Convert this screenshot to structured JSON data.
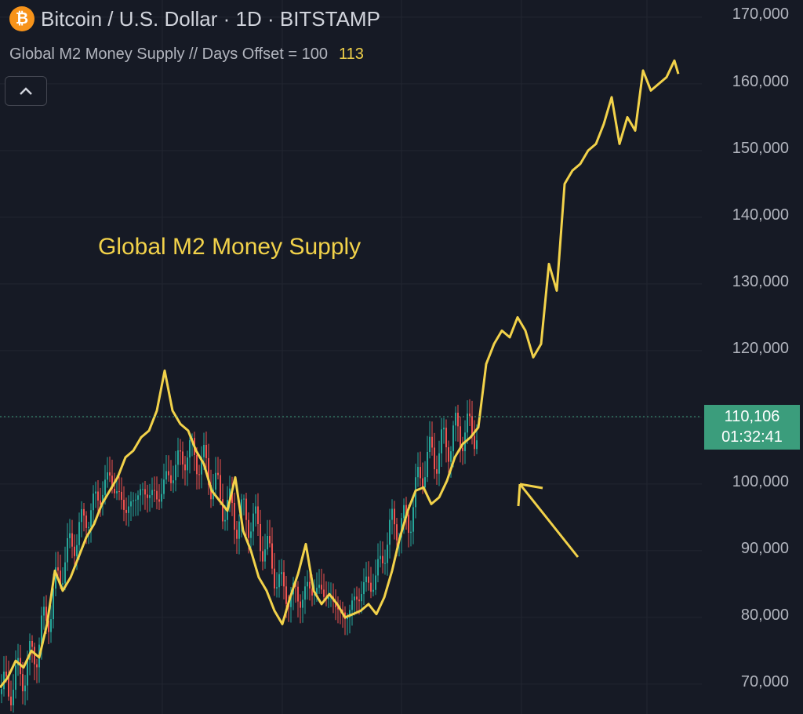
{
  "header": {
    "symbol_icon": "bitcoin-icon",
    "title": "Bitcoin / U.S. Dollar · 1D · BITSTAMP",
    "indicator_label": "Global M2 Money Supply // Days Offset = 100",
    "indicator_value": "113"
  },
  "annotation": "Global M2 Money Supply",
  "price_axis": [
    "170,000",
    "160,000",
    "150,000",
    "140,000",
    "130,000",
    "120,000",
    "100,000",
    "90,000",
    "80,000",
    "70,000"
  ],
  "current_price": {
    "value": "110,106",
    "countdown": "01:32:41"
  },
  "colors": {
    "background": "#161a25",
    "m2_line": "#f2d24a",
    "up": "#26a69a",
    "down": "#ef5350",
    "price_tag": "#3b9d7c"
  },
  "chart_data": {
    "type": "line",
    "title": "Bitcoin / U.S. Dollar · 1D · BITSTAMP",
    "ylim": [
      66000,
      173000
    ],
    "y_ticks": [
      70000,
      80000,
      90000,
      100000,
      110000,
      120000,
      130000,
      140000,
      150000,
      160000,
      170000
    ],
    "current_price": 110106,
    "series": [
      {
        "name": "Global M2 Money Supply",
        "x_index": [
          0,
          10,
          20,
          30,
          40,
          50,
          60,
          70,
          80,
          90,
          100,
          110,
          120,
          130,
          140,
          150,
          160,
          170,
          180,
          190,
          200,
          210,
          220,
          230,
          240,
          250,
          260,
          270,
          280,
          290,
          300,
          310,
          320,
          330,
          340,
          350,
          360,
          370,
          380,
          390,
          400,
          410,
          420,
          430,
          440,
          450,
          460,
          470,
          480,
          490,
          500,
          510,
          520,
          530,
          540,
          550,
          560,
          570,
          580,
          590,
          600,
          610,
          620,
          630,
          640,
          650,
          660,
          670,
          680,
          690,
          700,
          710,
          720,
          730,
          740,
          750,
          760,
          770,
          780,
          790,
          800,
          810,
          820,
          830,
          840,
          850,
          860,
          865
        ],
        "values": [
          69500,
          71000,
          73500,
          72500,
          75000,
          74000,
          79000,
          87000,
          84000,
          86000,
          89000,
          92000,
          94000,
          97000,
          99000,
          101000,
          104000,
          105000,
          107000,
          108000,
          111000,
          117000,
          111000,
          109000,
          108000,
          105000,
          103000,
          99000,
          97500,
          96000,
          101000,
          93000,
          90000,
          86000,
          84000,
          81000,
          79000,
          83000,
          86500,
          91000,
          84000,
          82000,
          83500,
          82000,
          80000,
          80500,
          81000,
          82000,
          80500,
          83000,
          87000,
          92000,
          96000,
          99000,
          99500,
          97000,
          98000,
          100500,
          104000,
          106000,
          107000,
          108500,
          118000,
          121000,
          123000,
          122000,
          125000,
          123000,
          119000,
          121000,
          133000,
          129000,
          145000,
          147000,
          148000,
          150000,
          151000,
          154000,
          158000,
          151000,
          155000,
          153000,
          162000,
          159000,
          160000,
          161000,
          163500,
          161500
        ]
      },
      {
        "name": "BTC daily candles (approx. closes)",
        "x_index": [
          0,
          20,
          40,
          60,
          80,
          100,
          120,
          140,
          160,
          180,
          200,
          220,
          240,
          260,
          280,
          300,
          320,
          340,
          360,
          380,
          400,
          420,
          440,
          460,
          480,
          500,
          520,
          540,
          560,
          580,
          600
        ],
        "values": [
          68500,
          70500,
          73500,
          80000,
          88000,
          93000,
          97000,
          101000,
          96000,
          99000,
          98000,
          102000,
          105000,
          103000,
          98000,
          95000,
          95000,
          90000,
          84000,
          83000,
          84500,
          83000,
          80000,
          84000,
          86000,
          94000,
          94000,
          103000,
          105000,
          107500,
          108000
        ]
      }
    ]
  }
}
